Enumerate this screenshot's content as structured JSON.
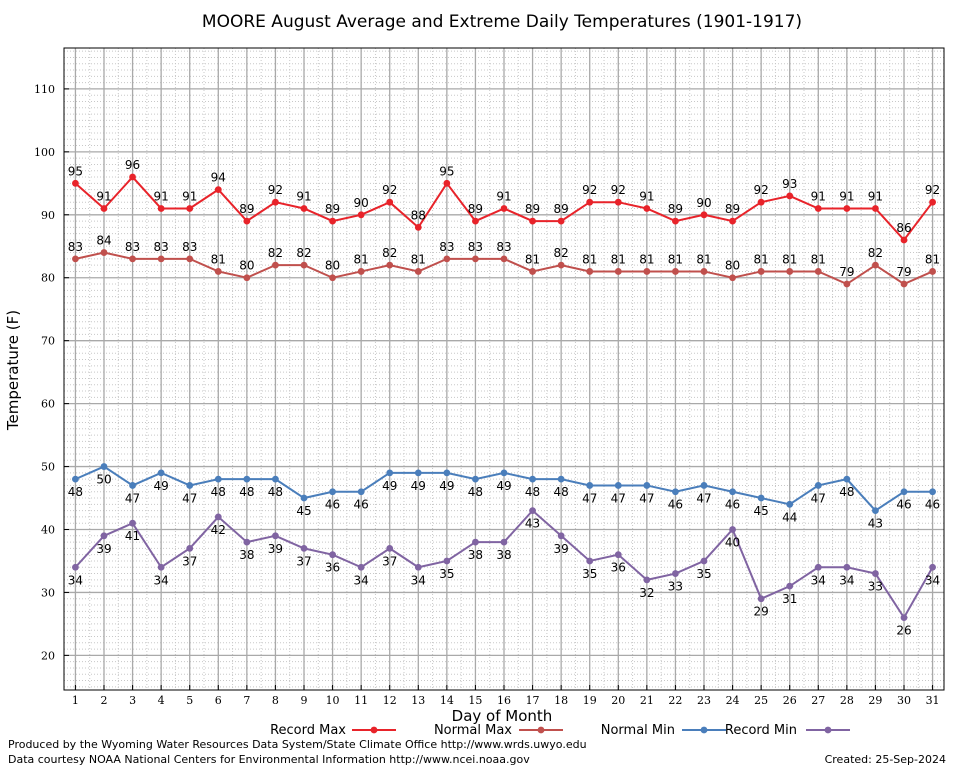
{
  "chart_data": {
    "type": "line",
    "title": "MOORE August Average and Extreme Daily Temperatures (1901-1917)",
    "xlabel": "Day of Month",
    "ylabel": "Temperature (F)",
    "x": [
      1,
      2,
      3,
      4,
      5,
      6,
      7,
      8,
      9,
      10,
      11,
      12,
      13,
      14,
      15,
      16,
      17,
      18,
      19,
      20,
      21,
      22,
      23,
      24,
      25,
      26,
      27,
      28,
      29,
      30,
      31
    ],
    "xlim": [
      0.6,
      31.4
    ],
    "ylim": [
      14.5,
      116.5
    ],
    "yticks": [
      20,
      30,
      40,
      50,
      60,
      70,
      80,
      90,
      100,
      110
    ],
    "grid": true,
    "legend_position": "bottom",
    "series": [
      {
        "name": "Record Max",
        "color": "#e8232a",
        "values": [
          95,
          91,
          96,
          91,
          91,
          94,
          89,
          92,
          91,
          89,
          90,
          92,
          88,
          95,
          89,
          91,
          89,
          89,
          92,
          92,
          91,
          89,
          90,
          89,
          92,
          93,
          91,
          91,
          91,
          86,
          92
        ]
      },
      {
        "name": "Normal Max",
        "color": "#c0504d",
        "values": [
          83,
          84,
          83,
          83,
          83,
          81,
          80,
          82,
          82,
          80,
          81,
          82,
          81,
          83,
          83,
          83,
          81,
          82,
          81,
          81,
          81,
          81,
          81,
          80,
          81,
          81,
          81,
          79,
          82,
          79,
          81
        ]
      },
      {
        "name": "Normal Min",
        "color": "#4a7ebb",
        "values": [
          48,
          50,
          47,
          49,
          47,
          48,
          48,
          48,
          45,
          46,
          46,
          49,
          49,
          49,
          48,
          49,
          48,
          48,
          47,
          47,
          47,
          46,
          47,
          46,
          45,
          44,
          47,
          48,
          43,
          46,
          46
        ]
      },
      {
        "name": "Record Min",
        "color": "#8064a2",
        "values": [
          34,
          39,
          41,
          34,
          37,
          42,
          38,
          39,
          37,
          36,
          34,
          37,
          34,
          35,
          38,
          38,
          43,
          39,
          35,
          36,
          32,
          33,
          35,
          40,
          29,
          31,
          34,
          34,
          33,
          26,
          34
        ]
      }
    ]
  },
  "footer": {
    "produced_by": "Produced by the Wyoming Water Resources Data System/State Climate Office http://www.wrds.uwyo.edu",
    "courtesy": "Data courtesy NOAA National Centers for Environmental Information http://www.ncei.noaa.gov",
    "created": "Created:  25-Sep-2024"
  }
}
